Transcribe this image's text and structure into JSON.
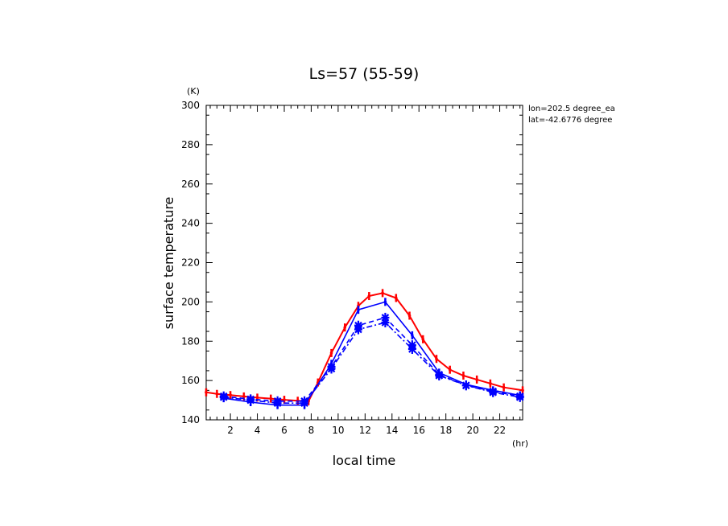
{
  "chart_data": {
    "type": "line",
    "title": "Ls=57 (55-59)",
    "xlabel": "local time",
    "ylabel": "surface temperature",
    "x_unit": "(hr)",
    "y_unit": "(K)",
    "xlim": [
      0.2,
      23.7
    ],
    "ylim": [
      140,
      300
    ],
    "x_ticks": [
      2,
      4,
      6,
      8,
      10,
      12,
      14,
      16,
      18,
      20,
      22
    ],
    "y_ticks": [
      140,
      160,
      180,
      200,
      220,
      240,
      260,
      280,
      300
    ],
    "grid": false,
    "annotations": [
      "lon=202.5 degree_ea",
      "lat=-42.6776 degree"
    ],
    "colors": {
      "red": "#ff0000",
      "blue": "#0000ff"
    },
    "series": [
      {
        "color": "#ff0000",
        "style": "solid",
        "marker": "tick",
        "x": [
          0.2,
          1.0,
          2.0,
          3.0,
          4.0,
          5.0,
          6.0,
          7.0,
          7.8,
          8.5,
          9.5,
          10.5,
          11.5,
          12.3,
          13.3,
          14.3,
          15.3,
          16.3,
          17.3,
          18.3,
          19.3,
          20.3,
          21.3,
          22.3,
          23.7
        ],
        "y": [
          154,
          153.2,
          152.6,
          151.9,
          151.3,
          150.8,
          150.2,
          149.7,
          149.5,
          159,
          174,
          187,
          198,
          203,
          204.5,
          202,
          193,
          181,
          171,
          165.5,
          162.5,
          160.5,
          158.5,
          156.5,
          155
        ]
      },
      {
        "color": "#0000ff",
        "style": "solid",
        "marker": "tick",
        "x": [
          1.5,
          3.5,
          5.5,
          7.5,
          9.5,
          11.5,
          13.5,
          15.5,
          17.5,
          19.5,
          21.5,
          23.5
        ],
        "y": [
          151,
          149,
          147.5,
          147.5,
          168.5,
          196,
          200,
          183,
          164,
          158,
          155,
          152.5
        ]
      },
      {
        "color": "#0000ff",
        "style": "dash",
        "marker": "star",
        "x": [
          1.5,
          3.5,
          5.5,
          7.5,
          9.5,
          11.5,
          13.5,
          15.5,
          17.5,
          19.5,
          21.5,
          23.5
        ],
        "y": [
          152,
          150.5,
          149.5,
          149.5,
          167,
          188,
          192,
          178,
          163,
          157.5,
          154.5,
          152
        ]
      },
      {
        "color": "#0000ff",
        "style": "dashdot",
        "marker": "star",
        "x": [
          1.5,
          3.5,
          5.5,
          7.5,
          9.5,
          11.5,
          13.5,
          15.5,
          17.5,
          19.5,
          21.5,
          23.5
        ],
        "y": [
          151.5,
          150,
          148.5,
          148.5,
          166,
          186,
          189.5,
          176,
          162.5,
          157.5,
          154,
          151.5
        ]
      }
    ]
  }
}
